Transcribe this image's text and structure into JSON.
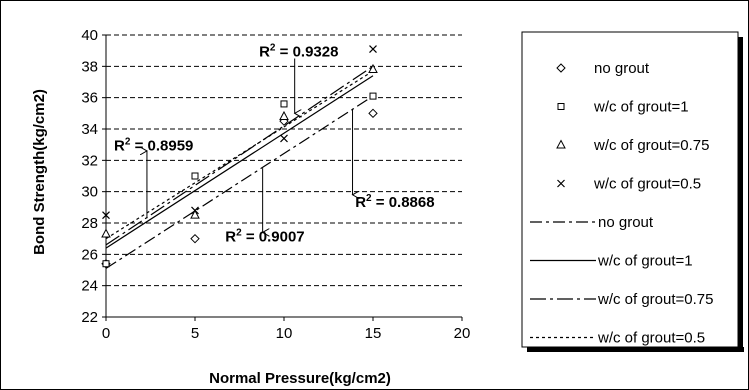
{
  "chart_data": {
    "type": "scatter",
    "xlabel": "Normal Pressure(kg/cm2)",
    "ylabel": "Bond Strength(kg/cm2)",
    "xlim": [
      0,
      20
    ],
    "ylim": [
      22,
      40
    ],
    "xticks": [
      0,
      5,
      10,
      15,
      20
    ],
    "yticks": [
      22,
      24,
      26,
      28,
      30,
      32,
      34,
      36,
      38,
      40
    ],
    "grid": "horizontal dashed",
    "legend_position": "right",
    "series": [
      {
        "name": "no grout",
        "kind": "marker",
        "marker": "diamond",
        "x": [
          0,
          5,
          10,
          15
        ],
        "y": [
          25.4,
          27.0,
          34.5,
          35.0
        ]
      },
      {
        "name": "w/c of grout=1",
        "kind": "marker",
        "marker": "square",
        "x": [
          0,
          5,
          10,
          15
        ],
        "y": [
          25.4,
          31.0,
          35.6,
          36.1
        ]
      },
      {
        "name": "w/c of grout=0.75",
        "kind": "marker",
        "marker": "triangle",
        "x": [
          0,
          5,
          10,
          15
        ],
        "y": [
          27.3,
          28.5,
          34.8,
          37.8
        ]
      },
      {
        "name": "w/c of grout=0.5",
        "kind": "marker",
        "marker": "cross",
        "x": [
          0,
          5,
          10,
          15
        ],
        "y": [
          28.5,
          28.8,
          33.4,
          39.1
        ]
      }
    ],
    "trendlines": [
      {
        "name": "no grout",
        "dash": "12,4,3,4",
        "x": [
          0,
          15
        ],
        "y": [
          25.1,
          36.1
        ]
      },
      {
        "name": "w/c of grout=1",
        "dash": "none",
        "x": [
          0,
          15
        ],
        "y": [
          26.4,
          37.4
        ]
      },
      {
        "name": "w/c of grout=0.75",
        "dash": "16,4,3,4",
        "x": [
          0,
          15
        ],
        "y": [
          26.6,
          38.0
        ]
      },
      {
        "name": "w/c of grout=0.5",
        "dash": "3,3",
        "x": [
          0,
          15
        ],
        "y": [
          27.0,
          37.7
        ]
      }
    ],
    "annotations": [
      {
        "label": "R",
        "sup": "2",
        "value": " = 0.9328",
        "x": 8.6,
        "y": 38.95,
        "arrow_x": 10.6,
        "arrow_from": 38.5,
        "arrow_to": 35.0
      },
      {
        "label": "R",
        "sup": "2",
        "value": " = 0.8959",
        "x": 0.45,
        "y": 32.95,
        "arrow_x": 2.3,
        "arrow_from": 28.3,
        "arrow_to": 32.6
      },
      {
        "label": "R",
        "sup": "2",
        "value": " = 0.9007",
        "x": 6.7,
        "y": 27.15,
        "arrow_x": 8.8,
        "arrow_from": 31.5,
        "arrow_to": 27.4
      },
      {
        "label": "R",
        "sup": "2",
        "value": " = 0.8868",
        "x": 14.0,
        "y": 29.35,
        "arrow_x": 13.85,
        "arrow_from": 35.3,
        "arrow_to": 29.8
      }
    ]
  }
}
